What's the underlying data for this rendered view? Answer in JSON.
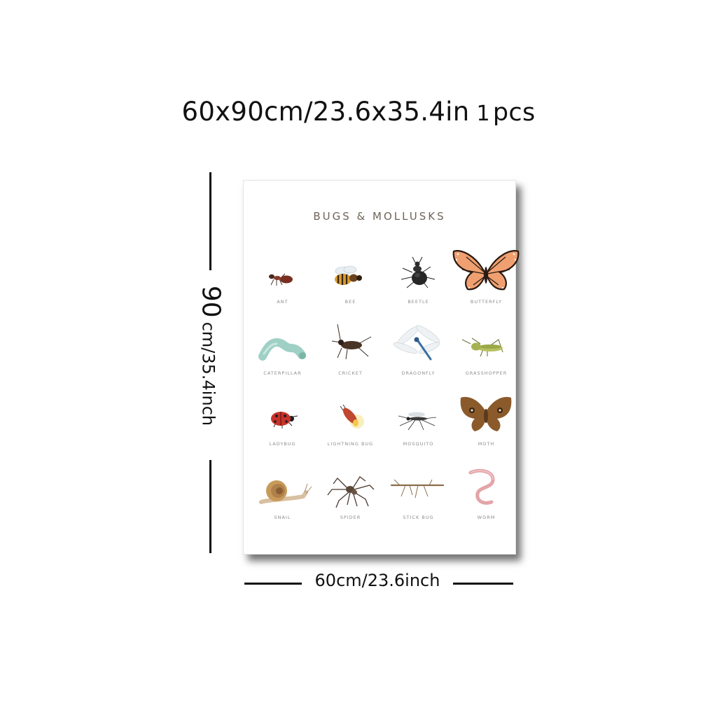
{
  "size_heading": {
    "dimensions": "60x90cm/23.6x35.4in",
    "quantity_number": "1",
    "quantity_unit": "pcs"
  },
  "height_measure": {
    "value": "90",
    "unit": "cm/35.4inch"
  },
  "width_measure": {
    "label": "60cm/23.6inch"
  },
  "poster": {
    "title": "BUGS & MOLLUSKS",
    "items": [
      {
        "label": "ANT",
        "icon": "ant-icon"
      },
      {
        "label": "BEE",
        "icon": "bee-icon"
      },
      {
        "label": "BEETLE",
        "icon": "beetle-icon"
      },
      {
        "label": "BUTTERFLY",
        "icon": "butterfly-icon"
      },
      {
        "label": "CATERPILLAR",
        "icon": "caterpillar-icon"
      },
      {
        "label": "CRICKET",
        "icon": "cricket-icon"
      },
      {
        "label": "DRAGONFLY",
        "icon": "dragonfly-icon"
      },
      {
        "label": "GRASSHOPPER",
        "icon": "grasshopper-icon"
      },
      {
        "label": "LADYBUG",
        "icon": "ladybug-icon"
      },
      {
        "label": "LIGHTNING BUG",
        "icon": "lightning-bug-icon"
      },
      {
        "label": "MOSQUITO",
        "icon": "mosquito-icon"
      },
      {
        "label": "MOTH",
        "icon": "moth-icon"
      },
      {
        "label": "SNAIL",
        "icon": "snail-icon"
      },
      {
        "label": "SPIDER",
        "icon": "spider-icon"
      },
      {
        "label": "STICK BUG",
        "icon": "stick-bug-icon"
      },
      {
        "label": "WORM",
        "icon": "worm-icon"
      }
    ]
  },
  "colors": {
    "text": "#111111",
    "title": "#6d6558",
    "caption": "#8c8c8c",
    "butterfly_orange": "#f0a070",
    "ladybug_red": "#c8322a",
    "caterpillar_teal": "#9fd0c6",
    "worm_pink": "#e4a4a8",
    "moth_brown": "#8b5a2b"
  }
}
